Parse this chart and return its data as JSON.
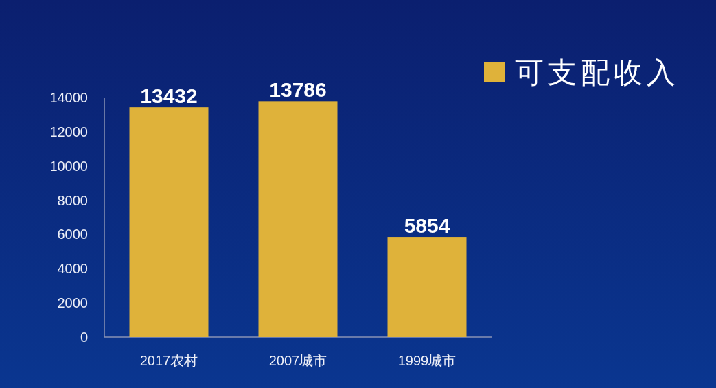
{
  "chart_data": {
    "type": "bar",
    "categories": [
      "2017农村",
      "2007城市",
      "1999城市"
    ],
    "series": [
      {
        "name": "可支配收入",
        "color": "#dfb23a",
        "values": [
          13432,
          13786,
          5854
        ]
      }
    ],
    "ylim": [
      0,
      14000
    ],
    "yticks": [
      0,
      2000,
      4000,
      6000,
      8000,
      10000,
      12000,
      14000
    ],
    "data_labels": true,
    "legend": "top right"
  }
}
